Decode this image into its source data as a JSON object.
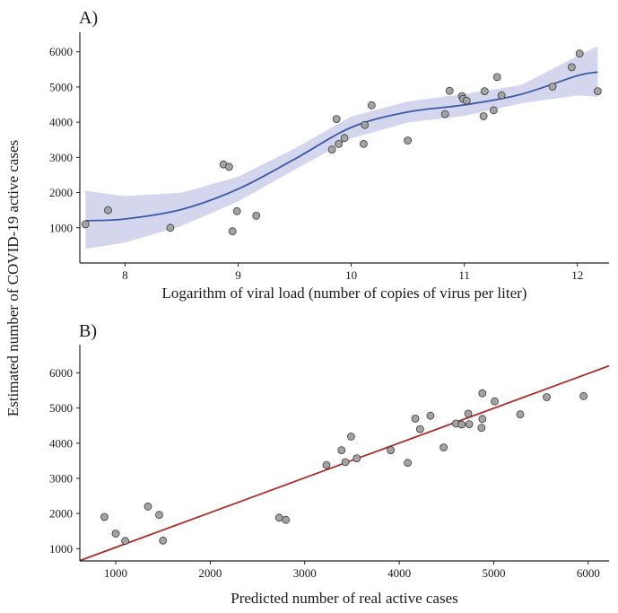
{
  "figure": {
    "shared_ylabel": "Estimated number of COVID-19 active cases"
  },
  "chart_data": [
    {
      "panel_label": "A)",
      "type": "scatter",
      "xlabel": "Logarithm of viral load (number of copies of virus per liter)",
      "ylabel": "Estimated number of COVID-19 active cases",
      "xlim": [
        7.6,
        12.28
      ],
      "ylim": [
        0,
        6400
      ],
      "xticks": [
        8,
        9,
        10,
        11,
        12
      ],
      "yticks": [
        1000,
        2000,
        3000,
        4000,
        5000,
        6000
      ],
      "grid": false,
      "points": [
        [
          7.65,
          1100
        ],
        [
          7.85,
          1500
        ],
        [
          8.4,
          1000
        ],
        [
          8.87,
          2800
        ],
        [
          8.92,
          2730
        ],
        [
          8.95,
          900
        ],
        [
          8.99,
          1470
        ],
        [
          9.16,
          1340
        ],
        [
          9.83,
          3220
        ],
        [
          9.87,
          4090
        ],
        [
          9.89,
          3380
        ],
        [
          9.94,
          3550
        ],
        [
          10.11,
          3380
        ],
        [
          10.12,
          3920
        ],
        [
          10.18,
          4480
        ],
        [
          10.5,
          3480
        ],
        [
          10.83,
          4230
        ],
        [
          10.87,
          4890
        ],
        [
          10.98,
          4740
        ],
        [
          10.99,
          4660
        ],
        [
          11.02,
          4610
        ],
        [
          11.17,
          4170
        ],
        [
          11.18,
          4880
        ],
        [
          11.26,
          4340
        ],
        [
          11.29,
          5280
        ],
        [
          11.33,
          4760
        ],
        [
          11.78,
          5010
        ],
        [
          11.95,
          5560
        ],
        [
          12.02,
          5950
        ],
        [
          12.18,
          4880
        ]
      ],
      "smooth_line": {
        "x": [
          7.65,
          8.0,
          8.5,
          9.0,
          9.5,
          10.0,
          10.5,
          11.0,
          11.5,
          12.0,
          12.18
        ],
        "y": [
          1200,
          1250,
          1520,
          2100,
          2950,
          3850,
          4290,
          4490,
          4790,
          5320,
          5420
        ]
      },
      "confidence_band": {
        "x": [
          7.65,
          8.0,
          8.5,
          9.0,
          9.5,
          10.0,
          10.5,
          11.0,
          11.5,
          12.0,
          12.18
        ],
        "lower": [
          400,
          580,
          1050,
          1750,
          2650,
          3540,
          3990,
          4180,
          4530,
          4760,
          4720
        ],
        "upper": [
          2050,
          1900,
          2000,
          2450,
          3250,
          4160,
          4590,
          4800,
          5050,
          5880,
          6160
        ]
      },
      "colors": {
        "line": "#3a5aa5",
        "band": "#d4d6ee",
        "point": "#a3a3a3",
        "point_edge": "#3a3a3a"
      }
    },
    {
      "panel_label": "B)",
      "type": "scatter",
      "xlabel": "Predicted number of real active cases",
      "ylabel": "Estimated number of COVID-19 active cases",
      "xlim": [
        620,
        6220
      ],
      "ylim": [
        650,
        6650
      ],
      "xticks": [
        1000,
        2000,
        3000,
        4000,
        5000,
        6000
      ],
      "yticks": [
        1000,
        2000,
        3000,
        4000,
        5000,
        6000
      ],
      "grid": false,
      "points": [
        [
          880,
          1900
        ],
        [
          1000,
          1430
        ],
        [
          1100,
          1220
        ],
        [
          1340,
          2200
        ],
        [
          1460,
          1960
        ],
        [
          1500,
          1230
        ],
        [
          2730,
          1880
        ],
        [
          2800,
          1820
        ],
        [
          3230,
          3380
        ],
        [
          3390,
          3800
        ],
        [
          3430,
          3460
        ],
        [
          3490,
          4190
        ],
        [
          3550,
          3570
        ],
        [
          3910,
          3800
        ],
        [
          4090,
          3440
        ],
        [
          4170,
          4700
        ],
        [
          4220,
          4400
        ],
        [
          4330,
          4780
        ],
        [
          4470,
          3880
        ],
        [
          4600,
          4560
        ],
        [
          4660,
          4530
        ],
        [
          4730,
          4840
        ],
        [
          4740,
          4540
        ],
        [
          4870,
          4440
        ],
        [
          4880,
          4690
        ],
        [
          4880,
          5420
        ],
        [
          5010,
          5190
        ],
        [
          5280,
          4820
        ],
        [
          5560,
          5310
        ],
        [
          5950,
          5340
        ]
      ],
      "fit_line": {
        "x": [
          620,
          6220
        ],
        "y": [
          660,
          6200
        ]
      },
      "colors": {
        "line": "#a8302a",
        "point": "#a3a3a3",
        "point_edge": "#3a3a3a"
      }
    }
  ]
}
